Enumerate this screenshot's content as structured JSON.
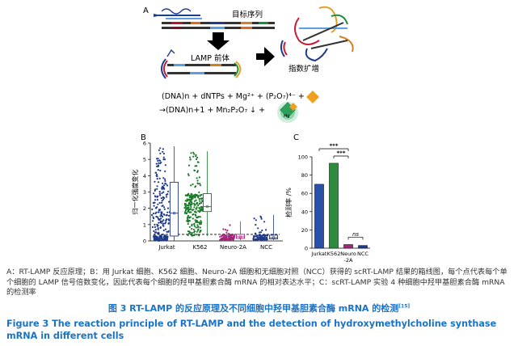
{
  "panel_labels": {
    "a": "A",
    "b": "B",
    "c": "C"
  },
  "panel_a": {
    "target_label": "目标序列",
    "lamp_precursor_label": "LAMP 前体",
    "exp_amp_label": "指数扩增",
    "eq_line1": "(DNA)n + dNTPs + Mg²⁺ + (P₂O₇)⁴⁻ +",
    "eq_line2": "→(DNA)n+1 + Mn₂P₂O₇ ↓ +",
    "mg_label": "Mg"
  },
  "chart_data": [
    {
      "type": "box-scatter",
      "panel": "B",
      "categories": [
        "Jurkat",
        "K562",
        "Neuro-2A",
        "NCC"
      ],
      "ylabel": "归一化强度变化",
      "yticks": [
        "0",
        "1",
        "2",
        "3",
        "4",
        "5",
        "6"
      ],
      "ylim": [
        0,
        6
      ],
      "series": [
        {
          "values_box": {
            "min": 0,
            "q1": 0.3,
            "median": 1.7,
            "q3": 3.6,
            "max": 5.8
          },
          "color": "#1f3a8a"
        },
        {
          "values_box": {
            "min": 0.3,
            "q1": 1.8,
            "median": 2.1,
            "q3": 2.9,
            "max": 5.5
          },
          "color": "#1b7a2a"
        },
        {
          "values_box": {
            "min": 0.05,
            "q1": 0.15,
            "median": 0.25,
            "q3": 0.4,
            "max": 1.2
          },
          "color": "#a0267a"
        },
        {
          "values_box": {
            "min": 0.05,
            "q1": 0.12,
            "median": 0.2,
            "q3": 0.35,
            "max": 1.6
          },
          "color": "#1f3a8a"
        }
      ],
      "threshold": 0.4
    },
    {
      "type": "bar",
      "panel": "C",
      "categories": [
        "Jurkat",
        "K562",
        "Neuro-2A",
        "NCC"
      ],
      "values": [
        70,
        93,
        4,
        3
      ],
      "colors": [
        "#2b50a8",
        "#2e8b3e",
        "#a0267a",
        "#1f3a8a"
      ],
      "ylabel": "检测率 /%",
      "yticks": [
        "0",
        "20",
        "40",
        "60",
        "80",
        "100"
      ],
      "ylim": [
        0,
        100
      ],
      "annotations": [
        "***",
        "***",
        "ns"
      ]
    }
  ],
  "caption_small": "A：RT-LAMP 反应原理；B：用 Jurkat 细胞、K562 细胞、Neuro-2A 细胞和无细胞对照（NCC）获得的 scRT-LAMP 结果的箱线图，每个点代表每个单个细胞的 LAMP 信号倍数变化，因此代表每个细胞的羟甲基胆素合酶 mRNA 的相对表达水平；C：scRT-LAMP 实验 4 种细胞中羟甲基胆素合酶 mRNA 的检测率",
  "title_cn": "图 3 RT-LAMP 的反应原理及不同细胞中羟甲基胆素合酶 mRNA 的检测",
  "title_cn_ref": "[15]",
  "title_en": "Figure 3 The reaction principle of RT-LAMP and the detection of hydroxymethylcholine synthase mRNA in different cells"
}
